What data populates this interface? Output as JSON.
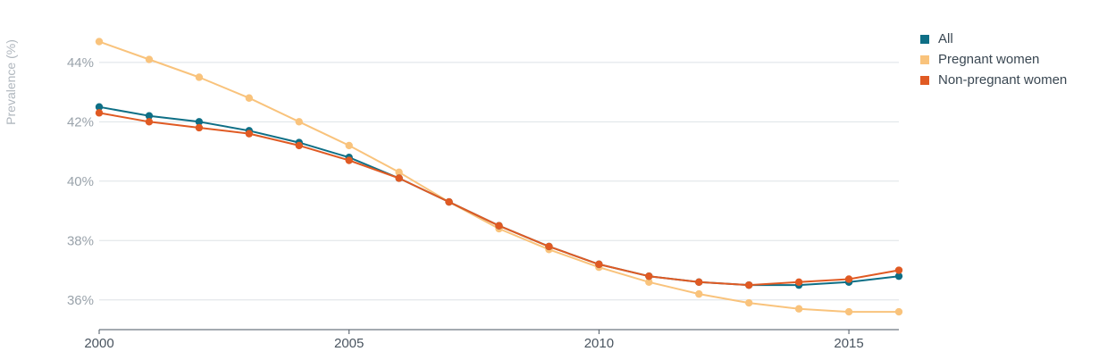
{
  "chart_data": {
    "type": "line",
    "title": "",
    "xlabel": "",
    "ylabel": "Prevalence (%)",
    "xlim": [
      2000,
      2016
    ],
    "ylim": [
      35,
      45.5
    ],
    "x_ticks": [
      2000,
      2005,
      2010,
      2015
    ],
    "x_tick_labels": [
      "2000",
      "2005",
      "2010",
      "2015"
    ],
    "y_ticks": [
      36,
      38,
      40,
      42,
      44
    ],
    "y_tick_labels": [
      "36%",
      "38%",
      "40%",
      "42%",
      "44%"
    ],
    "grid": true,
    "legend_position": "top-right",
    "x": [
      2000,
      2001,
      2002,
      2003,
      2004,
      2005,
      2006,
      2007,
      2008,
      2009,
      2010,
      2011,
      2012,
      2013,
      2014,
      2015,
      2016
    ],
    "series": [
      {
        "name": "Pregnant women",
        "color": "#f9c37c",
        "values": [
          44.7,
          44.1,
          43.5,
          42.8,
          42.0,
          41.2,
          40.3,
          39.3,
          38.4,
          37.7,
          37.1,
          36.6,
          36.2,
          35.9,
          35.7,
          35.6,
          35.6
        ]
      },
      {
        "name": "All",
        "color": "#0e6f86",
        "values": [
          42.5,
          42.2,
          42.0,
          41.7,
          41.3,
          40.8,
          40.1,
          39.3,
          38.5,
          37.8,
          37.2,
          36.8,
          36.6,
          36.5,
          36.5,
          36.6,
          36.8
        ]
      },
      {
        "name": "Non-pregnant women",
        "color": "#e05a23",
        "values": [
          42.3,
          42.0,
          41.8,
          41.6,
          41.2,
          40.7,
          40.1,
          39.3,
          38.5,
          37.8,
          37.2,
          36.8,
          36.6,
          36.5,
          36.6,
          36.7,
          37.0
        ]
      }
    ],
    "legend": [
      {
        "name": "All",
        "color": "#0e6f86"
      },
      {
        "name": "Pregnant women",
        "color": "#f9c37c"
      },
      {
        "name": "Non-pregnant women",
        "color": "#e05a23"
      }
    ]
  }
}
